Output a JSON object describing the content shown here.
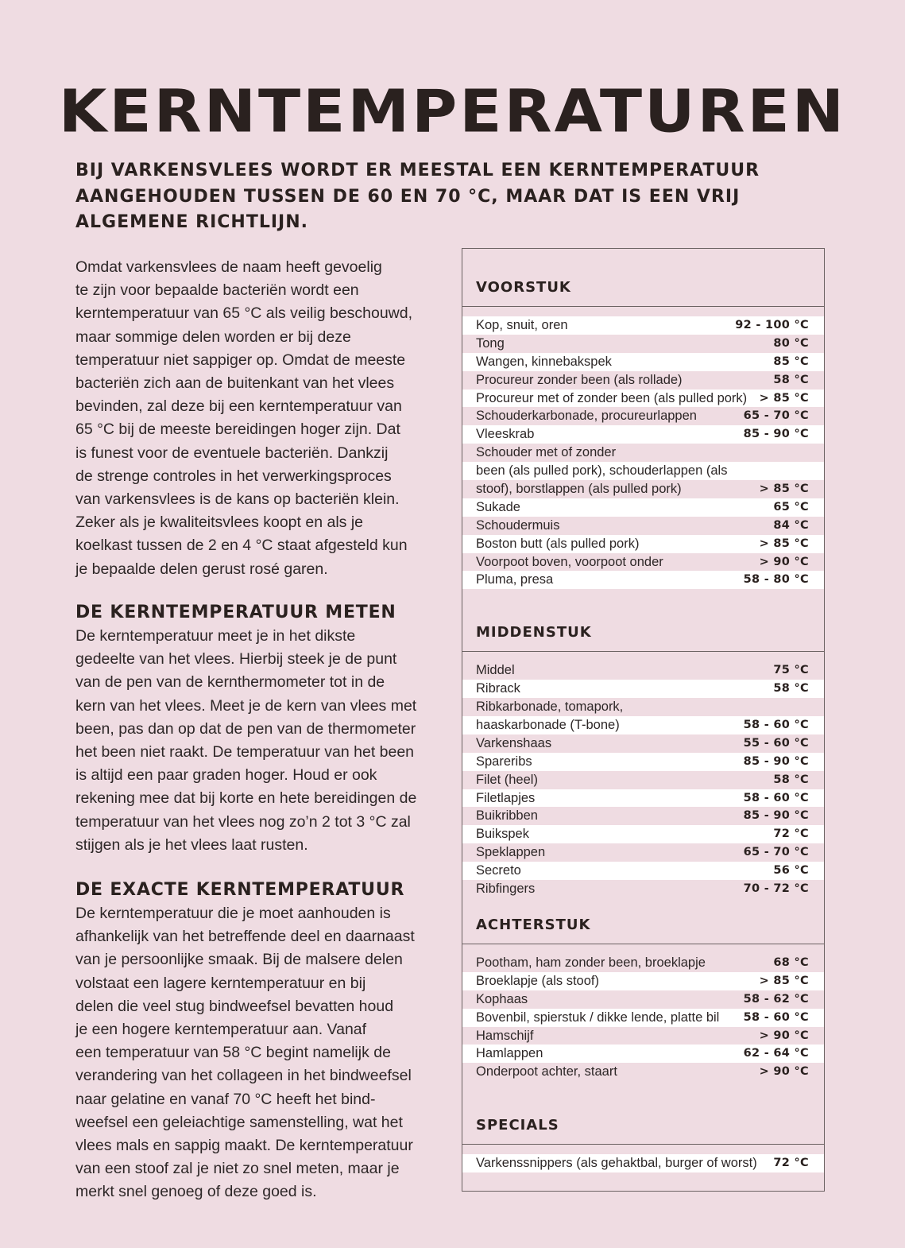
{
  "title": "KERNTEMPERATUREN",
  "intro": "Bij varkensvlees wordt er meestal een kerntemperatuur\naangehouden tussen de 60 en 70 °C, maar dat is een vrij\nalgemene richtlijn.",
  "body": {
    "paragraph1": "Omdat varkensvlees de naam heeft gevoelig\nte zijn voor bepaalde bacteriën wordt een\nkerntemperatuur van 65 °C als veilig beschouwd,\nmaar sommige delen worden er bij deze\ntemperatuur niet sappiger op. Omdat de meeste\nbacteriën zich aan de buitenkant van het vlees\nbevinden, zal deze bij een kerntemperatuur van\n65 °C bij de meeste bereidingen hoger zijn. Dat\nis funest voor de eventuele bacteriën. Dankzij\nde strenge controles in het verwerkingsproces\nvan varkensvlees is de kans op bacteriën klein.\nZeker als je kwaliteitsvlees koopt en als je\nkoelkast tussen de 2 en 4 °C staat afgesteld kun\nje bepaalde delen gerust rosé garen.",
    "section2_heading": "De kerntemperatuur meten",
    "section2_text": "De kerntemperatuur meet je in het dikste\ngedeelte van het vlees. Hierbij steek je de punt\nvan de pen van de kernthermometer tot in de\nkern van het vlees. Meet je de kern van vlees met\nbeen, pas dan op dat de pen van de thermometer\nhet been niet raakt. De temperatuur van het been\nis altijd een paar graden hoger. Houd er ook\nrekening mee dat bij korte en hete bereidingen de\ntemperatuur van het vlees nog zo’n 2 tot 3 °C zal\nstijgen als je het vlees laat rusten.",
    "section3_heading": "De exacte kerntemperatuur",
    "section3_text": "De kerntemperatuur die je moet aanhouden is\nafhankelijk van het betreffende deel en daarnaast\nvan je persoonlijke smaak. Bij de malsere delen\nvolstaat een lagere kerntemperatuur en bij\ndelen die veel stug bindweefsel bevatten houd\nje een hogere kerntemperatuur aan. Vanaf\neen temperatuur van 58 °C begint namelijk de\nverandering van het collageen in het bindweefsel\nnaar gelatine en vanaf 70 °C heeft het bind-\nweefsel een geleiachtige samenstelling, wat het\nvlees mals en sappig maakt. De kerntemperatuur\nvan een stoof zal je niet zo snel meten, maar je\nmerkt snel genoeg of deze goed is."
  },
  "colors": {
    "background": "#efdce2",
    "row_alt": "#ffffff",
    "text": "#2a211f"
  },
  "table": {
    "sections": [
      {
        "title": "Voorstuk",
        "rows": [
          {
            "name": "Kop, snuit, oren",
            "temp": "92 - 100 °C"
          },
          {
            "name": "Tong",
            "temp": "80 °C"
          },
          {
            "name": "Wangen, kinnebakspek",
            "temp": "85 °C"
          },
          {
            "name": "Procureur zonder been (als rollade)",
            "temp": "58 °C"
          },
          {
            "name": "Procureur met of zonder been (als pulled pork)",
            "temp": "> 85 °C"
          },
          {
            "name": "Schouderkarbonade, procureurlappen",
            "temp": "65 - 70 °C"
          },
          {
            "name": "Vleeskrab",
            "temp": "85 - 90 °C"
          },
          {
            "name": "Schouder met of zonder",
            "temp": ""
          },
          {
            "name": "been (als pulled pork), schouderlappen (als",
            "temp": ""
          },
          {
            "name": "stoof), borstlappen (als pulled pork)",
            "temp": "> 85 °C"
          },
          {
            "name": "Sukade",
            "temp": "65 °C"
          },
          {
            "name": "Schoudermuis",
            "temp": "84 °C"
          },
          {
            "name": "Boston butt (als pulled pork)",
            "temp": "> 85 °C"
          },
          {
            "name": "Voorpoot boven, voorpoot onder",
            "temp": "> 90 °C"
          },
          {
            "name": "Pluma, presa",
            "temp": "58 - 80 °C"
          }
        ]
      },
      {
        "title": "Middenstuk",
        "rows": [
          {
            "name": "Middel",
            "temp": "75 °C"
          },
          {
            "name": "Ribrack",
            "temp": "58 °C"
          },
          {
            "name": "Ribkarbonade, tomapork,",
            "temp": ""
          },
          {
            "name": "haaskarbonade (T-bone)",
            "temp": "58 - 60 °C"
          },
          {
            "name": "Varkenshaas",
            "temp": "55 - 60 °C"
          },
          {
            "name": "Spareribs",
            "temp": "85 - 90 °C"
          },
          {
            "name": "Filet (heel)",
            "temp": "58 °C"
          },
          {
            "name": "Filetlapjes",
            "temp": "58 - 60 °C"
          },
          {
            "name": "Buikribben",
            "temp": "85 - 90 °C"
          },
          {
            "name": "Buikspek",
            "temp": "72 °C"
          },
          {
            "name": "Speklappen",
            "temp": "65 - 70 °C"
          },
          {
            "name": "Secreto",
            "temp": "56 °C"
          },
          {
            "name": "Ribfingers",
            "temp": "70 - 72 °C"
          }
        ]
      },
      {
        "title": "Achterstuk",
        "rows": [
          {
            "name": "Pootham, ham zonder been, broeklapje",
            "temp": "68 °C"
          },
          {
            "name": "Broeklapje (als stoof)",
            "temp": "> 85 °C"
          },
          {
            "name": "Kophaas",
            "temp": "58 - 62 °C"
          },
          {
            "name": "Bovenbil, spierstuk / dikke lende, platte bil",
            "temp": "58 - 60 °C"
          },
          {
            "name": "Hamschijf",
            "temp": "> 90 °C"
          },
          {
            "name": "Hamlappen",
            "temp": "62 - 64 °C"
          },
          {
            "name": "Onderpoot achter, staart",
            "temp": "> 90 °C"
          }
        ]
      },
      {
        "title": "Specials",
        "rows": [
          {
            "name": "Varkenssnippers (als gehaktbal, burger of worst)",
            "temp": "72 °C"
          }
        ]
      }
    ]
  }
}
